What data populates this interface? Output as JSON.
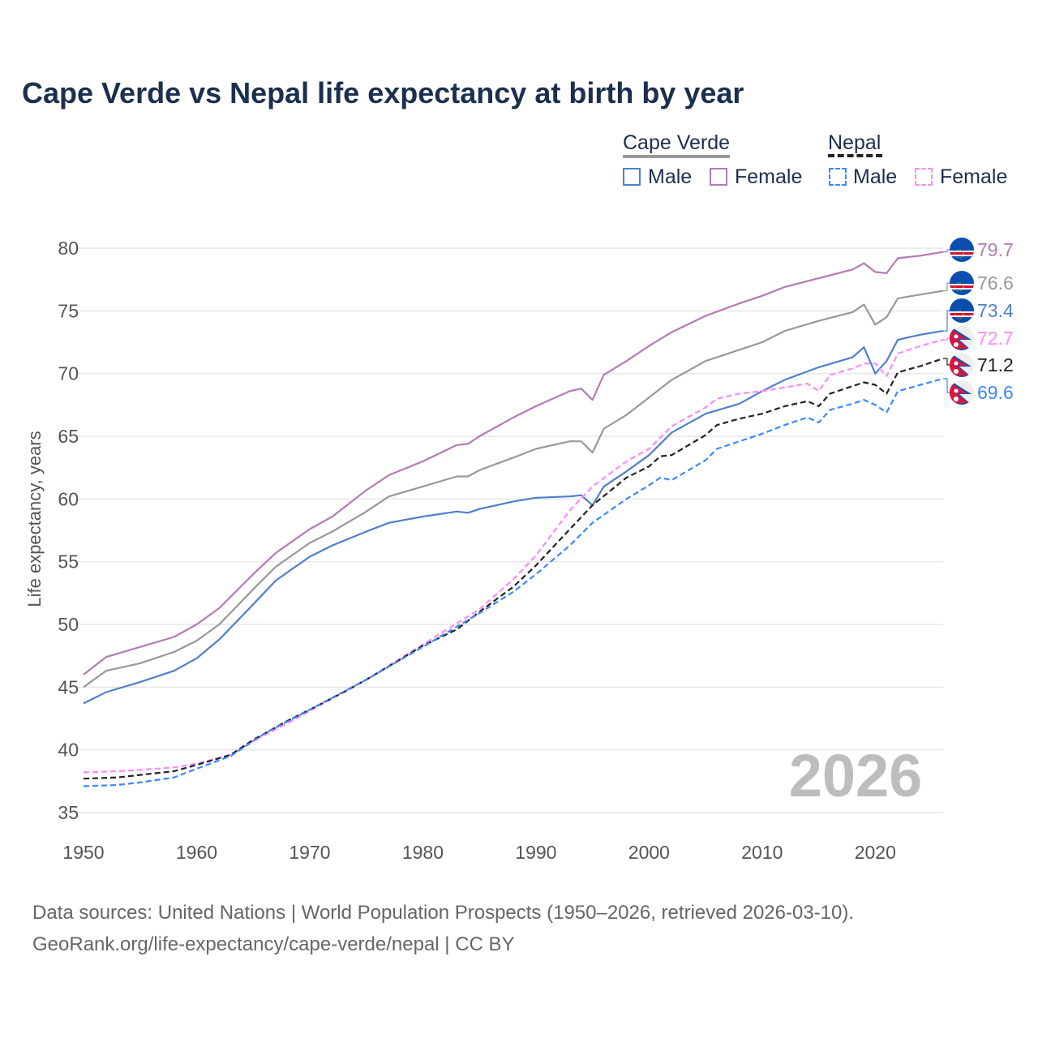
{
  "title": "Cape Verde vs Nepal life expectancy at birth by year",
  "legend": {
    "groups": [
      {
        "name": "Cape Verde",
        "items": [
          "Male",
          "Female"
        ]
      },
      {
        "name": "Nepal",
        "items": [
          "Male",
          "Female"
        ]
      }
    ]
  },
  "source": {
    "line1": "Data sources: United Nations | World Population Prospects (1950–2026, retrieved 2026-03-10).",
    "line2": "GeoRank.org/life-expectancy/cape-verde/nepal | CC BY"
  },
  "chart_data": {
    "type": "line",
    "title": "Cape Verde vs Nepal life expectancy at birth by year",
    "xlabel": "",
    "ylabel": "Life expectancy, years",
    "xlim": [
      1950,
      2026
    ],
    "ylim": [
      35,
      80
    ],
    "xticks": [
      "1950",
      "1960",
      "1970",
      "1980",
      "1990",
      "2000",
      "2010",
      "2020"
    ],
    "yticks": [
      "35",
      "40",
      "45",
      "50",
      "55",
      "60",
      "65",
      "70",
      "75",
      "80"
    ],
    "watermark_year": "2026",
    "grid": true,
    "series": [
      {
        "name": "Cape Verde Female",
        "color": "#b57ab5",
        "dash": false,
        "end_label": "79.7",
        "flag": "cape-verde",
        "points": [
          [
            1950,
            46.0
          ],
          [
            1952,
            47.4
          ],
          [
            1955,
            48.2
          ],
          [
            1958,
            49.0
          ],
          [
            1960,
            50.0
          ],
          [
            1962,
            51.3
          ],
          [
            1965,
            54.0
          ],
          [
            1967,
            55.7
          ],
          [
            1970,
            57.6
          ],
          [
            1972,
            58.6
          ],
          [
            1975,
            60.7
          ],
          [
            1977,
            61.9
          ],
          [
            1980,
            63.0
          ],
          [
            1983,
            64.3
          ],
          [
            1984,
            64.4
          ],
          [
            1985,
            65.0
          ],
          [
            1988,
            66.5
          ],
          [
            1990,
            67.4
          ],
          [
            1993,
            68.6
          ],
          [
            1994,
            68.8
          ],
          [
            1995,
            67.9
          ],
          [
            1996,
            69.9
          ],
          [
            1998,
            71.0
          ],
          [
            2000,
            72.2
          ],
          [
            2002,
            73.3
          ],
          [
            2005,
            74.6
          ],
          [
            2008,
            75.6
          ],
          [
            2010,
            76.2
          ],
          [
            2012,
            76.9
          ],
          [
            2015,
            77.6
          ],
          [
            2018,
            78.3
          ],
          [
            2019,
            78.8
          ],
          [
            2020,
            78.1
          ],
          [
            2021,
            78.0
          ],
          [
            2022,
            79.2
          ],
          [
            2024,
            79.4
          ],
          [
            2026,
            79.7
          ]
        ]
      },
      {
        "name": "Cape Verde",
        "color": "#999999",
        "dash": false,
        "end_label": "76.6",
        "flag": "cape-verde",
        "points": [
          [
            1950,
            45.0
          ],
          [
            1952,
            46.3
          ],
          [
            1955,
            46.9
          ],
          [
            1958,
            47.8
          ],
          [
            1960,
            48.7
          ],
          [
            1962,
            50.0
          ],
          [
            1965,
            52.8
          ],
          [
            1967,
            54.6
          ],
          [
            1970,
            56.5
          ],
          [
            1972,
            57.4
          ],
          [
            1975,
            59.0
          ],
          [
            1977,
            60.2
          ],
          [
            1980,
            61.0
          ],
          [
            1983,
            61.8
          ],
          [
            1984,
            61.8
          ],
          [
            1985,
            62.3
          ],
          [
            1988,
            63.3
          ],
          [
            1990,
            64.0
          ],
          [
            1993,
            64.6
          ],
          [
            1994,
            64.6
          ],
          [
            1995,
            63.7
          ],
          [
            1996,
            65.6
          ],
          [
            1998,
            66.7
          ],
          [
            2000,
            68.1
          ],
          [
            2002,
            69.5
          ],
          [
            2005,
            71.0
          ],
          [
            2008,
            71.9
          ],
          [
            2010,
            72.5
          ],
          [
            2012,
            73.4
          ],
          [
            2015,
            74.2
          ],
          [
            2018,
            74.9
          ],
          [
            2019,
            75.5
          ],
          [
            2020,
            73.9
          ],
          [
            2021,
            74.5
          ],
          [
            2022,
            76.0
          ],
          [
            2024,
            76.3
          ],
          [
            2026,
            76.6
          ]
        ]
      },
      {
        "name": "Cape Verde Male",
        "color": "#4f7fc9",
        "dash": false,
        "end_label": "73.4",
        "flag": "cape-verde",
        "points": [
          [
            1950,
            43.7
          ],
          [
            1952,
            44.6
          ],
          [
            1955,
            45.4
          ],
          [
            1958,
            46.3
          ],
          [
            1960,
            47.3
          ],
          [
            1962,
            48.8
          ],
          [
            1965,
            51.6
          ],
          [
            1967,
            53.5
          ],
          [
            1970,
            55.4
          ],
          [
            1972,
            56.3
          ],
          [
            1975,
            57.4
          ],
          [
            1977,
            58.1
          ],
          [
            1980,
            58.6
          ],
          [
            1983,
            59.0
          ],
          [
            1984,
            58.9
          ],
          [
            1985,
            59.2
          ],
          [
            1988,
            59.8
          ],
          [
            1990,
            60.1
          ],
          [
            1993,
            60.2
          ],
          [
            1994,
            60.3
          ],
          [
            1995,
            59.5
          ],
          [
            1996,
            61.0
          ],
          [
            1998,
            62.2
          ],
          [
            2000,
            63.5
          ],
          [
            2002,
            65.3
          ],
          [
            2005,
            66.8
          ],
          [
            2008,
            67.6
          ],
          [
            2010,
            68.6
          ],
          [
            2012,
            69.5
          ],
          [
            2015,
            70.5
          ],
          [
            2018,
            71.3
          ],
          [
            2019,
            72.1
          ],
          [
            2020,
            70.0
          ],
          [
            2021,
            71.0
          ],
          [
            2022,
            72.7
          ],
          [
            2024,
            73.1
          ],
          [
            2026,
            73.4
          ]
        ]
      },
      {
        "name": "Nepal Female",
        "color": "#ff88ff",
        "dash": true,
        "end_label": "72.7",
        "flag": "nepal",
        "points": [
          [
            1950,
            38.2
          ],
          [
            1953,
            38.3
          ],
          [
            1955,
            38.4
          ],
          [
            1958,
            38.6
          ],
          [
            1960,
            38.9
          ],
          [
            1963,
            39.6
          ],
          [
            1965,
            40.7
          ],
          [
            1968,
            42.1
          ],
          [
            1970,
            43.1
          ],
          [
            1975,
            45.6
          ],
          [
            1980,
            48.4
          ],
          [
            1985,
            51.2
          ],
          [
            1988,
            53.6
          ],
          [
            1990,
            55.5
          ],
          [
            1993,
            59.1
          ],
          [
            1995,
            61.0
          ],
          [
            1998,
            63.0
          ],
          [
            2000,
            64.0
          ],
          [
            2002,
            65.8
          ],
          [
            2005,
            67.3
          ],
          [
            2006,
            68.0
          ],
          [
            2008,
            68.4
          ],
          [
            2010,
            68.6
          ],
          [
            2012,
            68.9
          ],
          [
            2014,
            69.2
          ],
          [
            2015,
            68.6
          ],
          [
            2016,
            69.9
          ],
          [
            2018,
            70.4
          ],
          [
            2019,
            70.8
          ],
          [
            2020,
            70.8
          ],
          [
            2021,
            69.8
          ],
          [
            2022,
            71.6
          ],
          [
            2024,
            72.2
          ],
          [
            2026,
            72.7
          ]
        ]
      },
      {
        "name": "Nepal",
        "color": "#222222",
        "dash": true,
        "end_label": "71.2",
        "flag": "nepal",
        "points": [
          [
            1950,
            37.7
          ],
          [
            1953,
            37.8
          ],
          [
            1955,
            38.0
          ],
          [
            1958,
            38.3
          ],
          [
            1960,
            38.8
          ],
          [
            1963,
            39.6
          ],
          [
            1965,
            40.8
          ],
          [
            1968,
            42.3
          ],
          [
            1970,
            43.2
          ],
          [
            1973,
            44.6
          ],
          [
            1975,
            45.6
          ],
          [
            1978,
            47.2
          ],
          [
            1980,
            48.3
          ],
          [
            1983,
            49.6
          ],
          [
            1985,
            51.0
          ],
          [
            1988,
            53.0
          ],
          [
            1990,
            54.7
          ],
          [
            1993,
            57.6
          ],
          [
            1995,
            59.5
          ],
          [
            1998,
            61.7
          ],
          [
            2000,
            62.6
          ],
          [
            2001,
            63.4
          ],
          [
            2002,
            63.5
          ],
          [
            2005,
            65.1
          ],
          [
            2006,
            65.9
          ],
          [
            2008,
            66.4
          ],
          [
            2010,
            66.8
          ],
          [
            2012,
            67.4
          ],
          [
            2014,
            67.8
          ],
          [
            2015,
            67.4
          ],
          [
            2016,
            68.4
          ],
          [
            2018,
            69.0
          ],
          [
            2019,
            69.3
          ],
          [
            2020,
            69.1
          ],
          [
            2021,
            68.4
          ],
          [
            2022,
            70.1
          ],
          [
            2024,
            70.6
          ],
          [
            2026,
            71.2
          ]
        ]
      },
      {
        "name": "Nepal Male",
        "color": "#3a88ff",
        "dash": true,
        "end_label": "69.6",
        "flag": "nepal",
        "points": [
          [
            1950,
            37.1
          ],
          [
            1953,
            37.2
          ],
          [
            1955,
            37.4
          ],
          [
            1958,
            37.8
          ],
          [
            1960,
            38.5
          ],
          [
            1963,
            39.5
          ],
          [
            1966,
            41.3
          ],
          [
            1970,
            43.2
          ],
          [
            1975,
            45.6
          ],
          [
            1980,
            48.2
          ],
          [
            1985,
            50.9
          ],
          [
            1988,
            52.6
          ],
          [
            1990,
            54.0
          ],
          [
            1993,
            56.3
          ],
          [
            1995,
            58.1
          ],
          [
            1998,
            60.0
          ],
          [
            2000,
            61.1
          ],
          [
            2001,
            61.7
          ],
          [
            2002,
            61.5
          ],
          [
            2005,
            63.1
          ],
          [
            2006,
            64.0
          ],
          [
            2008,
            64.6
          ],
          [
            2010,
            65.2
          ],
          [
            2012,
            65.9
          ],
          [
            2014,
            66.5
          ],
          [
            2015,
            66.1
          ],
          [
            2016,
            67.1
          ],
          [
            2018,
            67.6
          ],
          [
            2019,
            67.9
          ],
          [
            2020,
            67.5
          ],
          [
            2021,
            66.9
          ],
          [
            2022,
            68.6
          ],
          [
            2024,
            69.1
          ],
          [
            2026,
            69.6
          ]
        ]
      }
    ]
  }
}
